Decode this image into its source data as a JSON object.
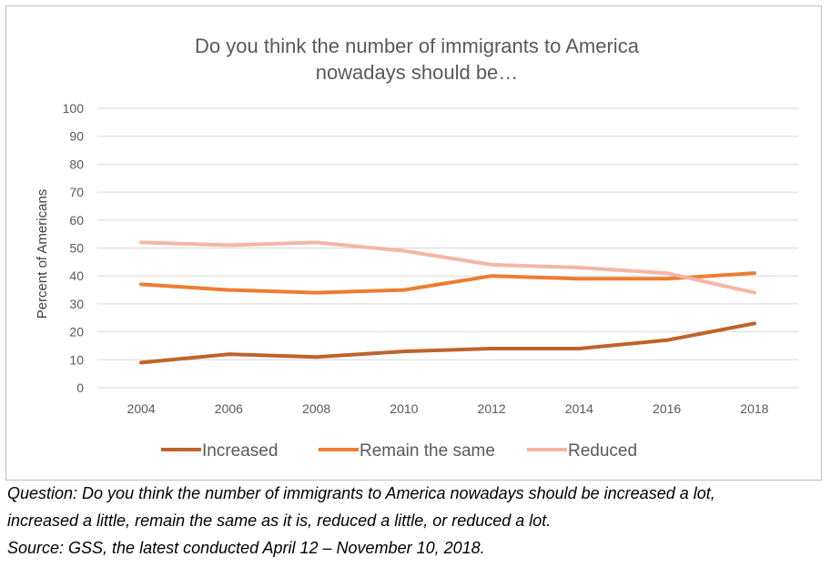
{
  "chart_data": {
    "type": "line",
    "title_lines": [
      "Do you think the number of immigrants to America",
      "nowadays should be…"
    ],
    "xlabel": "",
    "ylabel": "Percent of Americans",
    "x": [
      "2004",
      "2006",
      "2008",
      "2010",
      "2012",
      "2014",
      "2016",
      "2018"
    ],
    "ylim": [
      0,
      100
    ],
    "yticks": [
      0,
      10,
      20,
      30,
      40,
      50,
      60,
      70,
      80,
      90,
      100
    ],
    "grid": true,
    "legend_position": "bottom",
    "series": [
      {
        "name": "Increased",
        "color": "#c0622a",
        "values": [
          9,
          12,
          11,
          13,
          14,
          14,
          17,
          23
        ]
      },
      {
        "name": "Remain the same",
        "color": "#ed7d31",
        "values": [
          37,
          35,
          34,
          35,
          40,
          39,
          39,
          41
        ]
      },
      {
        "name": "Reduced",
        "color": "#f4b6a5",
        "values": [
          52,
          51,
          52,
          49,
          44,
          43,
          41,
          34
        ]
      }
    ]
  },
  "footnote": {
    "question_line1": "Question: Do you think the number of immigrants to America nowadays should be increased a lot,",
    "question_line2": "increased a little, remain the same as it is, reduced a little, or reduced a lot.",
    "source": "Source: GSS, the latest conducted April 12 – November 10, 2018."
  }
}
